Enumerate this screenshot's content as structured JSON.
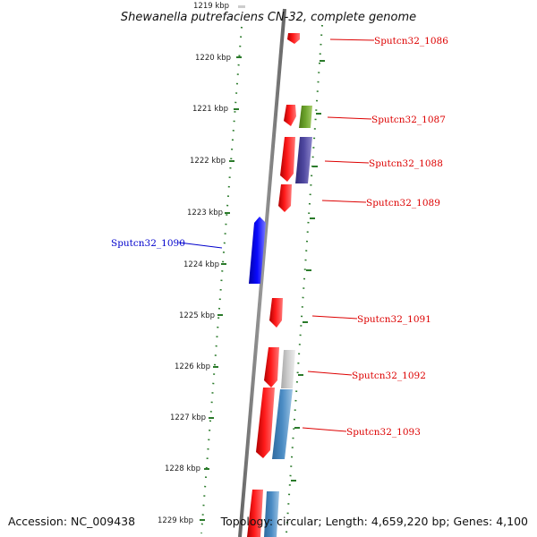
{
  "title": "Shewanella putrefaciens CN-32, complete genome",
  "accession": "Accession: NC_009438",
  "topology": "Topology: circular; Length: 4,659,220 bp; Genes: 4,100",
  "ticks": [
    "1219 kbp",
    "1220 kbp",
    "1221 kbp",
    "1222 kbp",
    "1223 kbp",
    "1224 kbp",
    "1225 kbp",
    "1226 kbp",
    "1227 kbp",
    "1228 kbp",
    "1229 kbp"
  ],
  "gene_labels": [
    {
      "text": "Sputcn32_1086",
      "color": "#dd0000"
    },
    {
      "text": "Sputcn32_1087",
      "color": "#dd0000"
    },
    {
      "text": "Sputcn32_1088",
      "color": "#dd0000"
    },
    {
      "text": "Sputcn32_1089",
      "color": "#dd0000"
    },
    {
      "text": "Sputcn32_1090",
      "color": "#0000cc"
    },
    {
      "text": "Sputcn32_1091",
      "color": "#dd0000"
    },
    {
      "text": "Sputcn32_1092",
      "color": "#dd0000"
    },
    {
      "text": "Sputcn32_1093",
      "color": "#dd0000"
    }
  ],
  "colors": {
    "forward_gene": "#ee1111",
    "reverse_gene": "#0000ee",
    "green_feature": "#6b9a2a",
    "purple_feature": "#4b4597",
    "gray_feature": "#c4c4c4",
    "steel_feature": "#4a88bf",
    "dotted_ring": "#2a7a2a",
    "backbone": "#888888"
  }
}
